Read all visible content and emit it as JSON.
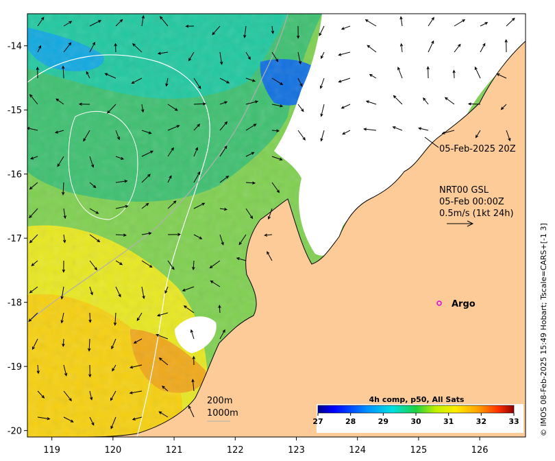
{
  "map": {
    "x_ticks": [
      "119",
      "120",
      "121",
      "122",
      "123",
      "124",
      "125",
      "126"
    ],
    "y_ticks": [
      "-14",
      "-15",
      "-16",
      "-17",
      "-18",
      "-19",
      "-20"
    ],
    "lon_range": [
      118.6,
      126.75
    ],
    "lat_range": [
      -20.1,
      -13.5
    ]
  },
  "annotations": {
    "timestamp": "05-Feb-2025 20Z",
    "product_line1": "NRT00 GSL",
    "product_line2": "05-Feb 00:00Z",
    "scale_label": "0.5m/s (1kt 24h)",
    "argo_label": "Argo",
    "contour_200": "200m",
    "contour_1000": "1000m"
  },
  "colorbar": {
    "title": "4h comp, p50, All Sats",
    "ticks": [
      "27",
      "28",
      "29",
      "30",
      "31",
      "32",
      "33"
    ],
    "range": [
      27,
      33
    ]
  },
  "credit": "© IMOS 08-Feb-2025 15:49 Hobart; Tscale=CARS+[-1 3]",
  "colors": {
    "land": "#fccb98",
    "cloud": "#ffffff",
    "contour_200": "#ffffff",
    "contour_1000": "#b0b0b0",
    "argo_marker": "#e000e0"
  },
  "icons": {
    "argo_marker": "argo-circle-icon",
    "scale_arrow": "arrow-right-icon"
  }
}
